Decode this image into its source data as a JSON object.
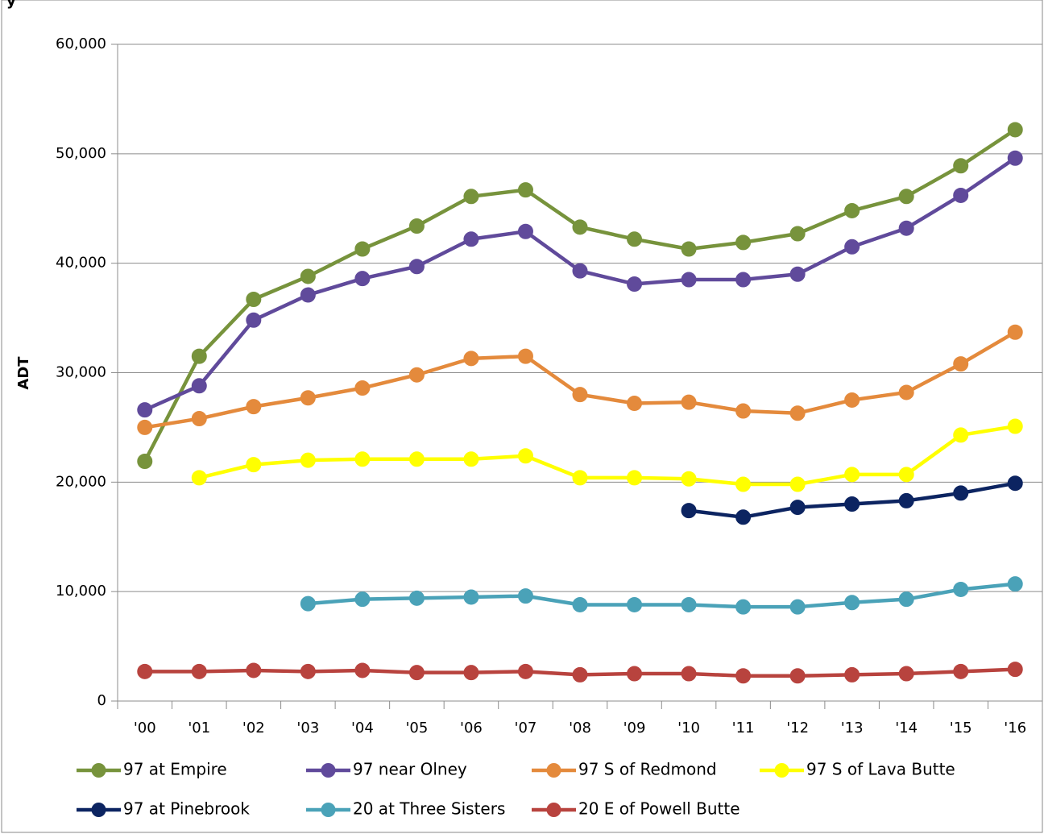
{
  "chart_data": {
    "type": "line",
    "ylabel": "ADT",
    "title_fragment": "y",
    "ylim": [
      0,
      60000
    ],
    "yticks": [
      0,
      10000,
      20000,
      30000,
      40000,
      50000,
      60000
    ],
    "ytick_labels": [
      "0",
      "10,000",
      "20,000",
      "30,000",
      "40,000",
      "50,000",
      "60,000"
    ],
    "categories": [
      "'00",
      "'01",
      "'02",
      "'03",
      "'04",
      "'05",
      "'06",
      "'07",
      "'08",
      "'09",
      "'10",
      "'11",
      "'12",
      "'13",
      "'14",
      "'15",
      "'16"
    ],
    "grid": "horizontal",
    "legend_position": "bottom",
    "series": [
      {
        "name": "97 at Empire",
        "color": "#77933c",
        "values": [
          21900,
          31500,
          36700,
          38800,
          41300,
          43400,
          46100,
          46700,
          43300,
          42200,
          41300,
          41900,
          42700,
          44800,
          46100,
          48900,
          52200
        ]
      },
      {
        "name": "97  near Olney",
        "color": "#604a9b",
        "values": [
          26600,
          28800,
          34800,
          37100,
          38600,
          39700,
          42200,
          42900,
          39300,
          38100,
          38500,
          38500,
          39000,
          41500,
          43200,
          46200,
          49600
        ]
      },
      {
        "name": "97 S of Redmond",
        "color": "#e48a3c",
        "values": [
          25000,
          25800,
          26900,
          27700,
          28600,
          29800,
          31300,
          31500,
          28000,
          27200,
          27300,
          26500,
          26300,
          27500,
          28200,
          30800,
          33700
        ]
      },
      {
        "name": "97 S of Lava Butte",
        "color": "#ffff00",
        "values": [
          null,
          20400,
          21600,
          22000,
          22100,
          22100,
          22100,
          22400,
          20400,
          20400,
          20300,
          19800,
          19800,
          20700,
          20700,
          24300,
          25100
        ]
      },
      {
        "name": "97 at Pinebrook",
        "color": "#0c2461",
        "values": [
          null,
          null,
          null,
          null,
          null,
          null,
          null,
          null,
          null,
          null,
          17400,
          16800,
          17700,
          18000,
          18300,
          19000,
          19900
        ]
      },
      {
        "name": "20 at Three Sisters",
        "color": "#4aa2b8",
        "values": [
          null,
          null,
          null,
          8900,
          9300,
          9400,
          9500,
          9600,
          8800,
          8800,
          8800,
          8600,
          8600,
          9000,
          9300,
          10200,
          10700
        ]
      },
      {
        "name": "20 E of Powell Butte",
        "color": "#b8433e",
        "values": [
          2700,
          2700,
          2800,
          2700,
          2800,
          2600,
          2600,
          2700,
          2400,
          2500,
          2500,
          2300,
          2300,
          2400,
          2500,
          2700,
          2900
        ]
      }
    ]
  }
}
